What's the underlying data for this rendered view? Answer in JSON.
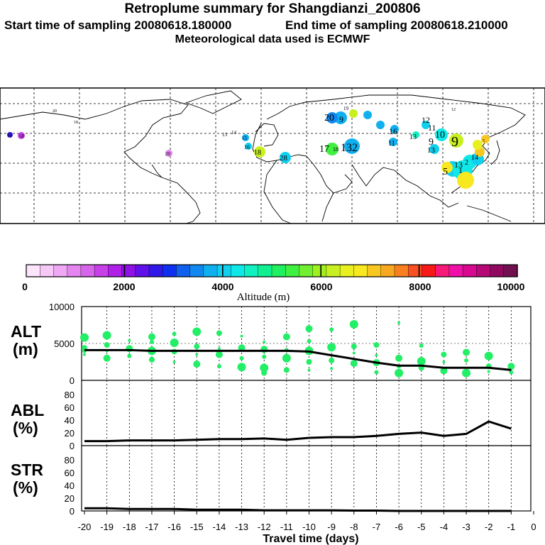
{
  "header": {
    "title": "Retroplume summary for Shangdianzi_200806",
    "start_label": "Start time of sampling 20080618.180000",
    "end_label": "End time of sampling 20080618.210000",
    "met_label": "Meteorological data used is ECMWF"
  },
  "colorbar": {
    "title": "Altitude (m)",
    "tick_labels": [
      "0",
      "2000",
      "4000",
      "6000",
      "8000",
      "10000"
    ],
    "colors": [
      "#fce4fc",
      "#f6c8f8",
      "#eea8f4",
      "#e486f0",
      "#d864ec",
      "#c840e8",
      "#b020e8",
      "#9010e8",
      "#6010e8",
      "#3018e8",
      "#1030f0",
      "#1060f0",
      "#1088f0",
      "#10b0f0",
      "#10d0f0",
      "#10e8e8",
      "#10f0c0",
      "#10f090",
      "#20f060",
      "#40f040",
      "#70f030",
      "#a0f020",
      "#c8f020",
      "#e8f020",
      "#f8e820",
      "#f8c820",
      "#f8a820",
      "#f88020",
      "#f85020",
      "#f81818",
      "#f81878",
      "#f010a8",
      "#d80890",
      "#b80878",
      "#900860",
      "#701050"
    ]
  },
  "map": {
    "labels": [
      {
        "text": "16",
        "alt": 3900
      },
      {
        "text": "58",
        "alt": 4400
      },
      {
        "text": "20",
        "alt": 4300
      },
      {
        "text": "18",
        "alt": 4100
      },
      {
        "text": "13",
        "alt": 6800
      },
      {
        "text": "14",
        "alt": 6900
      },
      {
        "text": "15",
        "alt": 7100
      },
      {
        "text": "16",
        "alt": 7000
      },
      {
        "text": "18",
        "alt": 6400
      },
      {
        "text": "20",
        "alt": 6200
      },
      {
        "text": "28",
        "alt": 4400
      },
      {
        "text": "17",
        "alt": 3900
      },
      {
        "text": "18",
        "alt": 4100
      },
      {
        "text": "132",
        "alt": 4700
      },
      {
        "text": "20",
        "alt": 3700
      },
      {
        "text": "9",
        "alt": 3800
      },
      {
        "text": "19",
        "alt": 3800
      },
      {
        "text": "16",
        "alt": 3700
      },
      {
        "text": "11",
        "alt": 6200
      },
      {
        "text": "12",
        "alt": 3800
      },
      {
        "text": "11",
        "alt": 3600
      },
      {
        "text": "13",
        "alt": 3700
      },
      {
        "text": "10",
        "alt": 5400
      },
      {
        "text": "9",
        "alt": 3900
      },
      {
        "text": "9",
        "alt": 6300
      },
      {
        "text": "13",
        "alt": 4000
      },
      {
        "text": "12",
        "alt": 3700
      },
      {
        "text": "5",
        "alt": 900
      },
      {
        "text": "14",
        "alt": 1400
      },
      {
        "text": "13",
        "alt": 2600
      },
      {
        "text": "5",
        "alt": 2200
      },
      {
        "text": "1",
        "alt": 2400
      },
      {
        "text": "2",
        "alt": 1700
      }
    ]
  },
  "panels": {
    "alt": {
      "name_line1": "ALT",
      "name_line2": "(m)",
      "yticks": [
        "0",
        "5000",
        "10000"
      ]
    },
    "abl": {
      "name_line1": "ABL",
      "name_line2": "(%)",
      "yticks": [
        "0",
        "20",
        "40",
        "60",
        "80"
      ]
    },
    "str": {
      "name_line1": "STR",
      "name_line2": "(%)",
      "yticks": [
        "0",
        "20",
        "40",
        "60",
        "80"
      ]
    }
  },
  "chart_data": {
    "type": "line",
    "title": "Retroplume summary for Shangdianzi_200806",
    "xlabel": "Travel time (days)",
    "x": [
      -20,
      -19,
      -18,
      -17,
      -16,
      -15,
      -14,
      -13,
      -12,
      -11,
      -10,
      -9,
      -8,
      -7,
      -6,
      -5,
      -4,
      -3,
      -2,
      -1
    ],
    "x_tick_labels": [
      "-20",
      "-19",
      "-18",
      "-17",
      "-16",
      "-15",
      "-14",
      "-13",
      "-12",
      "-11",
      "-10",
      "-9",
      "-8",
      "-7",
      "-6",
      "-5",
      "-4",
      "-3",
      "-2",
      "-1",
      "0"
    ],
    "xlim": [
      -20,
      0
    ],
    "series": [
      {
        "name": "ALT",
        "ylabel": "ALT (m)",
        "ylim": [
          0,
          10000
        ],
        "values": [
          4100,
          4100,
          4100,
          4000,
          4000,
          4000,
          4000,
          4000,
          4000,
          4000,
          3900,
          3400,
          2900,
          2400,
          2000,
          2000,
          1700,
          1700,
          1700,
          1400
        ]
      },
      {
        "name": "ABL",
        "ylabel": "ABL (%)",
        "ylim": [
          0,
          100
        ],
        "values": [
          7,
          7,
          8,
          8,
          8,
          9,
          10,
          10,
          11,
          9,
          12,
          13,
          13,
          15,
          18,
          20,
          15,
          18,
          37,
          26
        ]
      },
      {
        "name": "STR",
        "ylabel": "STR (%)",
        "ylim": [
          0,
          100
        ],
        "values": [
          4,
          4,
          3,
          3,
          3,
          2,
          2,
          2,
          1,
          1,
          1,
          1,
          0.5,
          0.5,
          0,
          0,
          0,
          0,
          0,
          0
        ]
      }
    ],
    "alt_scatter": [
      [
        -20,
        3500
      ],
      [
        -20,
        4400
      ],
      [
        -20,
        5800
      ],
      [
        -20,
        4000
      ],
      [
        -19,
        3000
      ],
      [
        -19,
        4000
      ],
      [
        -19,
        4800
      ],
      [
        -19,
        6100
      ],
      [
        -18,
        3300
      ],
      [
        -18,
        4300
      ],
      [
        -18,
        5400
      ],
      [
        -17,
        2800
      ],
      [
        -17,
        4000
      ],
      [
        -17,
        5200
      ],
      [
        -17,
        5900
      ],
      [
        -16,
        2500
      ],
      [
        -16,
        3900
      ],
      [
        -16,
        5100
      ],
      [
        -16,
        6300
      ],
      [
        -15,
        2200
      ],
      [
        -15,
        3500
      ],
      [
        -15,
        4600
      ],
      [
        -15,
        6600
      ],
      [
        -14,
        1900
      ],
      [
        -14,
        3500
      ],
      [
        -14,
        4300
      ],
      [
        -14,
        6400
      ],
      [
        -13,
        1800
      ],
      [
        -13,
        3000
      ],
      [
        -13,
        4400
      ],
      [
        -13,
        6000
      ],
      [
        -12,
        1000
      ],
      [
        -12,
        1700
      ],
      [
        -12,
        3200
      ],
      [
        -12,
        4200
      ],
      [
        -12,
        5200
      ],
      [
        -11,
        1400
      ],
      [
        -11,
        3000
      ],
      [
        -11,
        4100
      ],
      [
        -11,
        5900
      ],
      [
        -10,
        1400
      ],
      [
        -10,
        2500
      ],
      [
        -10,
        4000
      ],
      [
        -10,
        5300
      ],
      [
        -10,
        7000
      ],
      [
        -9,
        1600
      ],
      [
        -9,
        2700
      ],
      [
        -9,
        4500
      ],
      [
        -9,
        6900
      ],
      [
        -8,
        2300
      ],
      [
        -8,
        3700
      ],
      [
        -8,
        4600
      ],
      [
        -8,
        7600
      ],
      [
        -7,
        1100
      ],
      [
        -7,
        2400
      ],
      [
        -7,
        3400
      ],
      [
        -7,
        4800
      ],
      [
        -6,
        1000
      ],
      [
        -6,
        1900
      ],
      [
        -6,
        3000
      ],
      [
        -6,
        7800
      ],
      [
        -5,
        1700
      ],
      [
        -5,
        2600
      ],
      [
        -5,
        4700
      ],
      [
        -4,
        1300
      ],
      [
        -4,
        2500
      ],
      [
        -4,
        3500
      ],
      [
        -3,
        1000
      ],
      [
        -3,
        2700
      ],
      [
        -3,
        3800
      ],
      [
        -2,
        1200
      ],
      [
        -2,
        1900
      ],
      [
        -2,
        3300
      ],
      [
        -1,
        1100
      ],
      [
        -1,
        1900
      ]
    ]
  }
}
